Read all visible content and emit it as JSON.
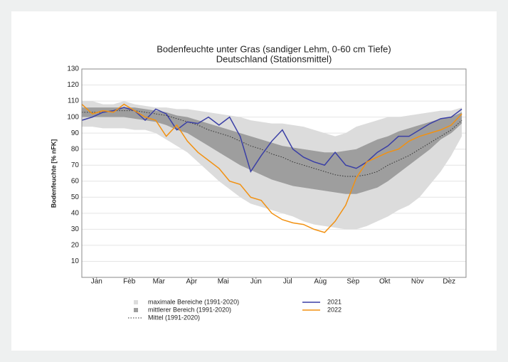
{
  "chart_data": {
    "type": "line",
    "title": "Bodenfeuchte unter Gras (sandiger Lehm, 0-60 cm Tiefe)",
    "subtitle": "Deutschland (Stationsmittel)",
    "y_label": "Bodenfeuchte [% nFK]",
    "xlim": [
      1,
      365
    ],
    "xticks": [
      {
        "value": 15,
        "label": "Jan"
      },
      {
        "value": 46,
        "label": "Feb"
      },
      {
        "value": 74,
        "label": "Mar"
      },
      {
        "value": 105,
        "label": "Apr"
      },
      {
        "value": 135,
        "label": "Mai"
      },
      {
        "value": 166,
        "label": "Jun"
      },
      {
        "value": 196,
        "label": "Jul"
      },
      {
        "value": 227,
        "label": "Aug"
      },
      {
        "value": 258,
        "label": "Sep"
      },
      {
        "value": 288,
        "label": "Okt"
      },
      {
        "value": 319,
        "label": "Nov"
      },
      {
        "value": 349,
        "label": "Dez"
      }
    ],
    "ylim": [
      0,
      130
    ],
    "yticks": [
      10,
      20,
      30,
      40,
      50,
      60,
      70,
      80,
      90,
      100,
      110,
      120,
      130
    ],
    "grid": true,
    "x": [
      1,
      11,
      21,
      31,
      41,
      51,
      61,
      71,
      81,
      91,
      101,
      111,
      121,
      131,
      141,
      151,
      161,
      171,
      181,
      191,
      201,
      211,
      221,
      231,
      241,
      251,
      261,
      271,
      281,
      291,
      301,
      311,
      321,
      331,
      341,
      351,
      361
    ],
    "series": [
      {
        "name": "maximale Bereiche (1991-2020)",
        "kind": "band",
        "color": "#dcdcdc",
        "values": [
          110,
          110,
          108,
          108,
          110,
          108,
          107,
          106,
          106,
          105,
          105,
          104,
          103,
          102,
          101,
          100,
          98,
          97,
          96,
          96,
          95,
          94,
          92,
          90,
          88,
          90,
          94,
          96,
          98,
          100,
          100,
          101,
          102,
          103,
          104,
          104,
          106
        ],
        "lower": [
          94,
          94,
          93,
          93,
          93,
          92,
          92,
          90,
          86,
          82,
          78,
          72,
          66,
          60,
          55,
          50,
          46,
          44,
          42,
          40,
          38,
          35,
          33,
          32,
          31,
          30,
          30,
          32,
          35,
          38,
          42,
          45,
          50,
          58,
          66,
          76,
          88
        ]
      },
      {
        "name": "mittlerer Bereich (1991-2020)",
        "kind": "band",
        "color": "#9e9e9e",
        "values": [
          106,
          106,
          106,
          106,
          106,
          106,
          105,
          104,
          103,
          101,
          100,
          98,
          96,
          94,
          92,
          90,
          88,
          86,
          84,
          82,
          81,
          80,
          79,
          78,
          78,
          79,
          80,
          83,
          86,
          88,
          91,
          93,
          95,
          97,
          99,
          100,
          103
        ],
        "lower": [
          100,
          100,
          100,
          100,
          100,
          99,
          98,
          97,
          95,
          92,
          90,
          86,
          82,
          78,
          74,
          70,
          67,
          64,
          61,
          59,
          57,
          56,
          55,
          54,
          53,
          52,
          52,
          54,
          56,
          60,
          65,
          70,
          75,
          80,
          86,
          90,
          96
        ]
      },
      {
        "name": "Mittel (1991-2020)",
        "kind": "dotted",
        "color": "#333333",
        "values": [
          103,
          103,
          103,
          104,
          104,
          104,
          103,
          102,
          101,
          99,
          97,
          95,
          92,
          90,
          88,
          85,
          82,
          80,
          77,
          75,
          72,
          70,
          68,
          66,
          64,
          63,
          63,
          64,
          66,
          70,
          73,
          76,
          80,
          84,
          88,
          92,
          98
        ]
      },
      {
        "name": "2021",
        "kind": "line",
        "color": "#3a3fa6",
        "values": [
          98,
          100,
          103,
          104,
          106,
          104,
          98,
          105,
          102,
          92,
          97,
          96,
          100,
          95,
          100,
          88,
          66,
          76,
          85,
          92,
          80,
          75,
          72,
          70,
          78,
          70,
          68,
          72,
          78,
          82,
          88,
          88,
          92,
          96,
          99,
          100,
          105
        ]
      },
      {
        "name": "2022",
        "kind": "line",
        "color": "#f29111",
        "values": [
          108,
          102,
          104,
          103,
          108,
          104,
          100,
          98,
          88,
          95,
          85,
          78,
          73,
          68,
          60,
          58,
          50,
          48,
          40,
          36,
          34,
          33,
          30,
          28,
          35,
          45,
          62,
          72,
          75,
          78,
          80,
          85,
          88,
          90,
          92,
          95,
          102
        ]
      }
    ]
  }
}
